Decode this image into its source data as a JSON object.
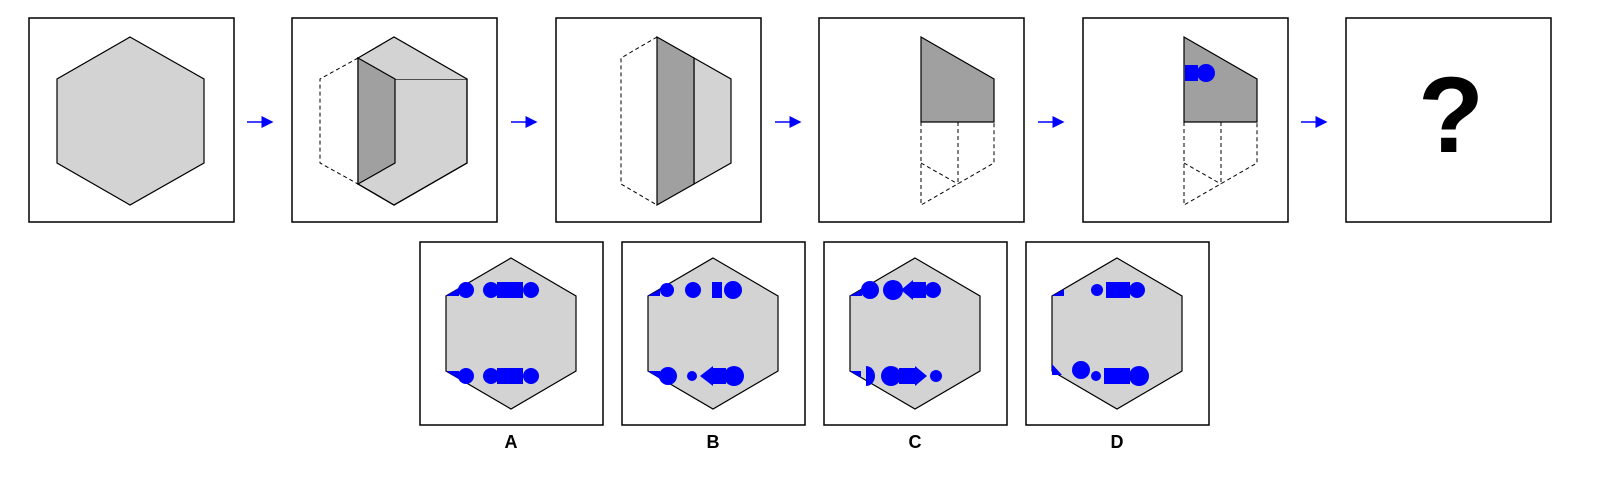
{
  "question_mark": "?",
  "options": [
    {
      "label": "A"
    },
    {
      "label": "B"
    },
    {
      "label": "C"
    },
    {
      "label": "D"
    }
  ],
  "colors": {
    "hex_fill": "#d3d3d3",
    "dark_fill": "#a0a0a0",
    "marker": "#0000ff",
    "arrow": "#0000ff",
    "stroke": "#000000"
  }
}
